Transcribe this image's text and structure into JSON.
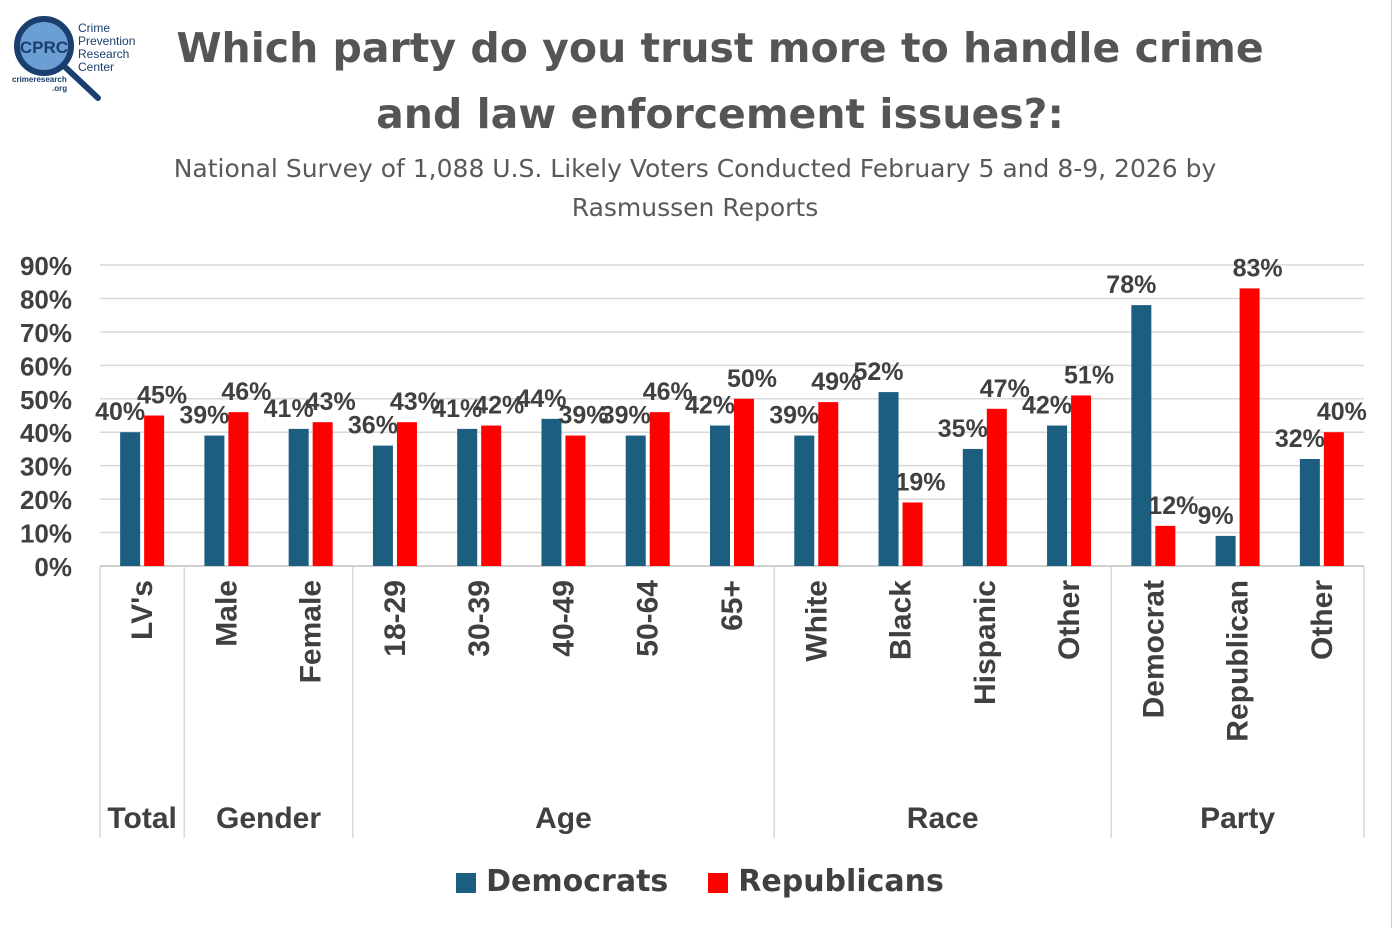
{
  "logo": {
    "text_main": "CPRC",
    "org_lines": [
      "Crime",
      "Prevention",
      "Research",
      "Center"
    ],
    "url_lines": [
      "crimeresearch",
      ".org"
    ]
  },
  "title_line1": "Which party do you trust more to handle crime",
  "title_line2": "and law enforcement issues?:",
  "subtitle_line1": "National Survey of 1,088 U.S. Likely Voters Conducted February 5 and 8-9, 2026 by",
  "subtitle_line2": "Rasmussen Reports",
  "colors": {
    "democrats": "#1b5e80",
    "republicans": "#ff0000"
  },
  "chart_data": {
    "type": "bar",
    "title": "Which party do you trust more to handle crime and law enforcement issues?:",
    "categories": [
      "LV's",
      "Male",
      "Female",
      "18-29",
      "30-39",
      "40-49",
      "50-64",
      "65+",
      "White",
      "Black",
      "Hispanic",
      "Other",
      "Democrat",
      "Republican",
      "Other"
    ],
    "groups": [
      {
        "name": "Total",
        "count": 1
      },
      {
        "name": "Gender",
        "count": 2
      },
      {
        "name": "Age",
        "count": 5
      },
      {
        "name": "Race",
        "count": 4
      },
      {
        "name": "Party",
        "count": 3
      }
    ],
    "series": [
      {
        "name": "Democrats",
        "values": [
          40,
          39,
          41,
          36,
          41,
          44,
          39,
          42,
          39,
          52,
          35,
          42,
          78,
          9,
          32
        ]
      },
      {
        "name": "Republicans",
        "values": [
          45,
          46,
          43,
          43,
          42,
          39,
          46,
          50,
          49,
          19,
          47,
          51,
          12,
          83,
          40
        ]
      }
    ],
    "yticks": [
      "0%",
      "10%",
      "20%",
      "30%",
      "40%",
      "50%",
      "60%",
      "70%",
      "80%",
      "90%"
    ],
    "ylim": [
      0,
      90
    ],
    "grid": true,
    "legend_position": "bottom"
  }
}
